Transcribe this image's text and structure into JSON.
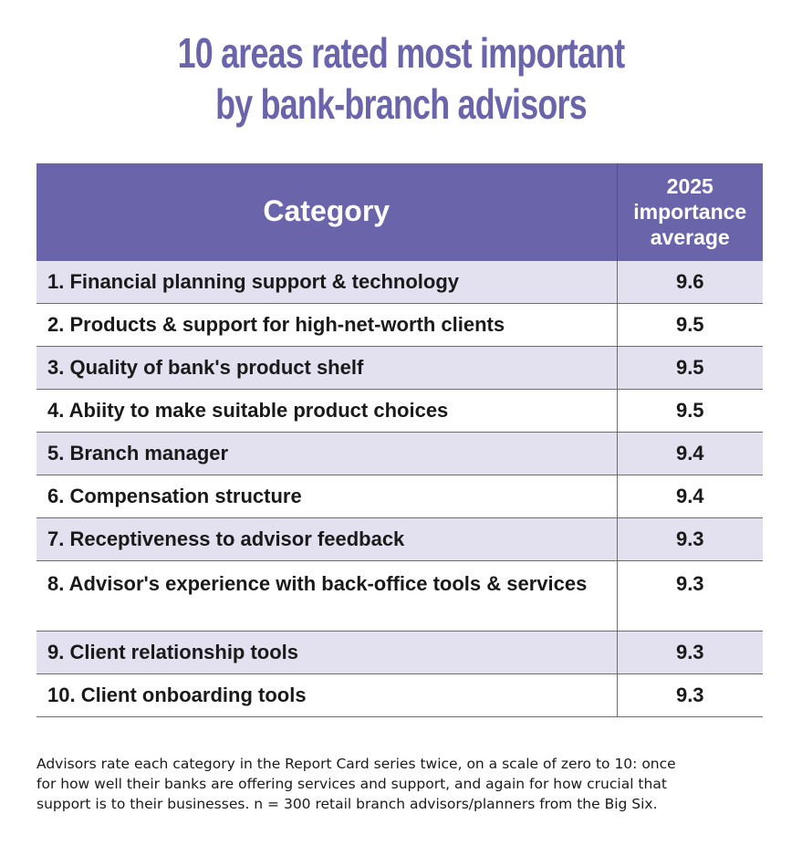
{
  "title": {
    "line1": "10 areas rated most important",
    "line2": "by bank-branch advisors"
  },
  "chart_data": {
    "type": "table",
    "columns": {
      "category": "Category",
      "importance": [
        "2025",
        "importance",
        "average"
      ]
    },
    "rows": [
      {
        "category": "1. Financial planning support & technology",
        "value": "9.6"
      },
      {
        "category": "2. Products & support for high-net-worth clients",
        "value": "9.5"
      },
      {
        "category": "3. Quality of bank's product shelf",
        "value": "9.5"
      },
      {
        "category": "4. Abiity to make suitable product choices",
        "value": "9.5"
      },
      {
        "category": "5. Branch manager",
        "value": "9.4"
      },
      {
        "category": "6. Compensation structure",
        "value": "9.4"
      },
      {
        "category": "7. Receptiveness to advisor feedback",
        "value": "9.3"
      },
      {
        "category": "8. Advisor's experience with back-office tools & services",
        "value": "9.3"
      },
      {
        "category": "9. Client relationship tools",
        "value": "9.3"
      },
      {
        "category": "10. Client onboarding tools",
        "value": "9.3"
      }
    ],
    "header_color": "#6a64ab",
    "stripe_color": "#e3e0ef"
  },
  "footnote": {
    "line1": "Advisors rate each category in the Report Card series twice, on a scale of zero to 10: once",
    "line2": "for how well their banks are offering services and support, and again for how crucial that",
    "line3": "support is to their businesses. n = 300 retail branch advisors/planners from the Big Six."
  }
}
